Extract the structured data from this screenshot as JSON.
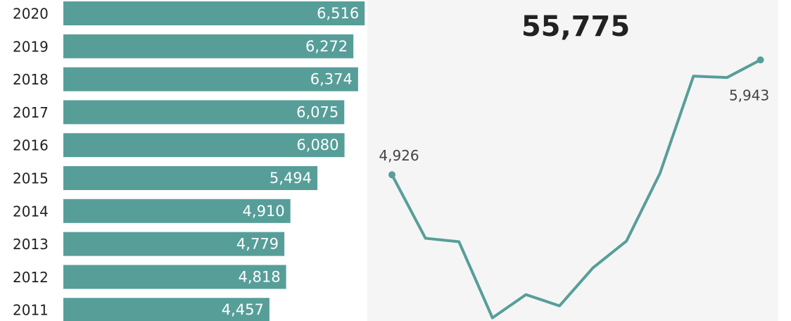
{
  "kpi": "55,775",
  "chart_data": [
    {
      "type": "hbar",
      "categories": [
        "2020",
        "2019",
        "2018",
        "2017",
        "2016",
        "2015",
        "2014",
        "2013",
        "2012",
        "2011"
      ],
      "values": [
        6516,
        6272,
        6374,
        6075,
        6080,
        5494,
        4910,
        4779,
        4818,
        4457
      ],
      "value_labels": [
        "6,516",
        "6,272",
        "6,374",
        "6,075",
        "6,080",
        "5,494",
        "4,910",
        "4,779",
        "4,818",
        "4,457"
      ],
      "color": "#579e99",
      "xlim": [
        0,
        7000
      ]
    },
    {
      "type": "line",
      "categories": [
        null,
        null,
        null,
        null,
        null,
        null,
        null,
        null,
        null,
        null,
        null,
        null
      ],
      "series": [
        {
          "name": null,
          "color": "#579e99",
          "values": [
            4926,
            4364,
            4333,
            3659,
            3865,
            3765,
            4102,
            4339,
            4939,
            5800,
            5787,
            5943
          ],
          "value_labels": [
            "4,926",
            null,
            null,
            null,
            null,
            null,
            null,
            null,
            null,
            null,
            null,
            "5,943"
          ]
        }
      ],
      "ylim": [
        3600,
        6000
      ]
    }
  ]
}
